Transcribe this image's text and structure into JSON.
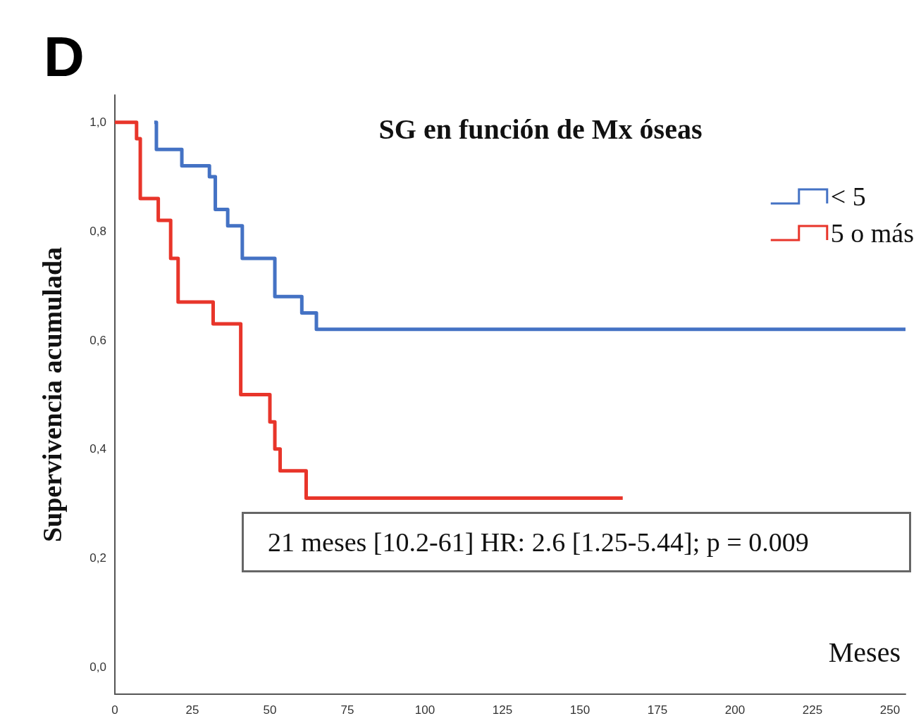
{
  "chart_data": {
    "type": "step",
    "title": "SG en función de Mx óseas",
    "xlabel": "Meses",
    "ylabel": "Supervivencia acumulada",
    "annotations": [
      "D",
      "21 meses [10.2-61] HR: 2.6 [1.25-5.44]; p = 0.009"
    ],
    "series": [
      {
        "name": "< 5",
        "color": "#4472c4",
        "x": [
          12.7,
          13.4,
          21.6,
          30.5,
          32.4,
          36.4,
          41.1,
          51.6,
          60.3,
          65,
          255
        ],
        "values": [
          1.0,
          0.95,
          0.92,
          0.9,
          0.84,
          0.81,
          0.75,
          0.68,
          0.65,
          0.62,
          0.62
        ]
      },
      {
        "name": "5 o más",
        "color": "#e8352a",
        "x": [
          0,
          7,
          8.2,
          14,
          18,
          20.4,
          31.7,
          40.6,
          50,
          51.6,
          53.3,
          61.7,
          163.8
        ],
        "values": [
          1.0,
          0.97,
          0.86,
          0.82,
          0.75,
          0.67,
          0.63,
          0.5,
          0.45,
          0.4,
          0.36,
          0.31,
          0.31
        ]
      }
    ],
    "xlim": [
      0,
      255
    ],
    "xticks": [
      0,
      25,
      50,
      75,
      100,
      125,
      150,
      175,
      200,
      225,
      250
    ],
    "ylim": [
      -0.05,
      1.05
    ],
    "yticks": [
      {
        "value": 0,
        "label": "0,0"
      },
      {
        "value": 0.2,
        "label": "0,2"
      },
      {
        "value": 0.4,
        "label": "0,4"
      },
      {
        "value": 0.6,
        "label": "0,6"
      },
      {
        "value": 0.8,
        "label": "0,8"
      },
      {
        "value": 1,
        "label": "1,0"
      }
    ],
    "grid": false,
    "legend": "top right",
    "marker": "none",
    "line_style": "solid"
  }
}
